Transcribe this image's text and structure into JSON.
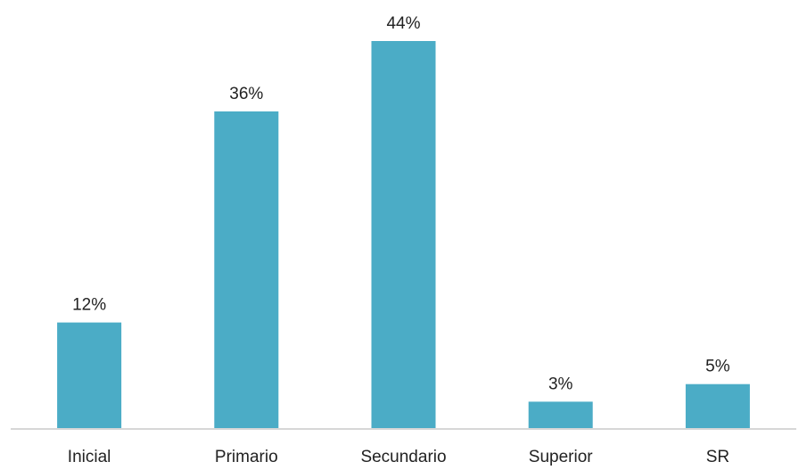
{
  "chart_data": {
    "type": "bar",
    "categories": [
      "Inicial",
      "Primario",
      "Secundario",
      "Superior",
      "SR"
    ],
    "values": [
      12,
      36,
      44,
      3,
      5
    ],
    "data_labels": [
      "12%",
      "36%",
      "44%",
      "3%",
      "5%"
    ],
    "unit": "%",
    "title": "",
    "xlabel": "",
    "ylabel": "",
    "ylim": [
      0,
      44
    ],
    "grid": false,
    "legend": "none",
    "bar_color": "#4BACC6",
    "axis_color": "#bfbfbf"
  }
}
